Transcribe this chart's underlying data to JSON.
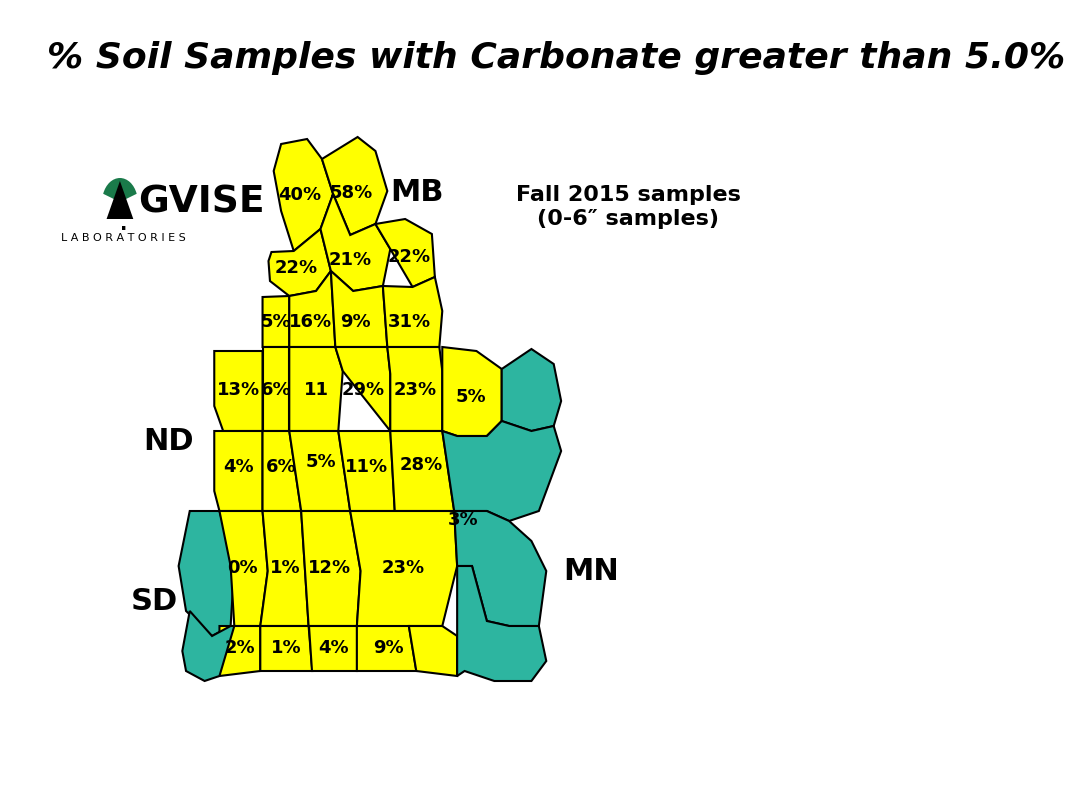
{
  "title": "% Soil Samples with Carbonate greater than 5.0%",
  "title_fontsize": 26,
  "subtitle": "Fall 2015 samples\n(0-6″ samples)",
  "subtitle_fontsize": 16,
  "mb_label": "MB",
  "nd_label": "ND",
  "sd_label": "SD",
  "mn_label": "MN",
  "background_color": "#ffffff",
  "yellow_color": "#FFFF00",
  "teal_color": "#2DB5A0",
  "border_color": "#000000"
}
